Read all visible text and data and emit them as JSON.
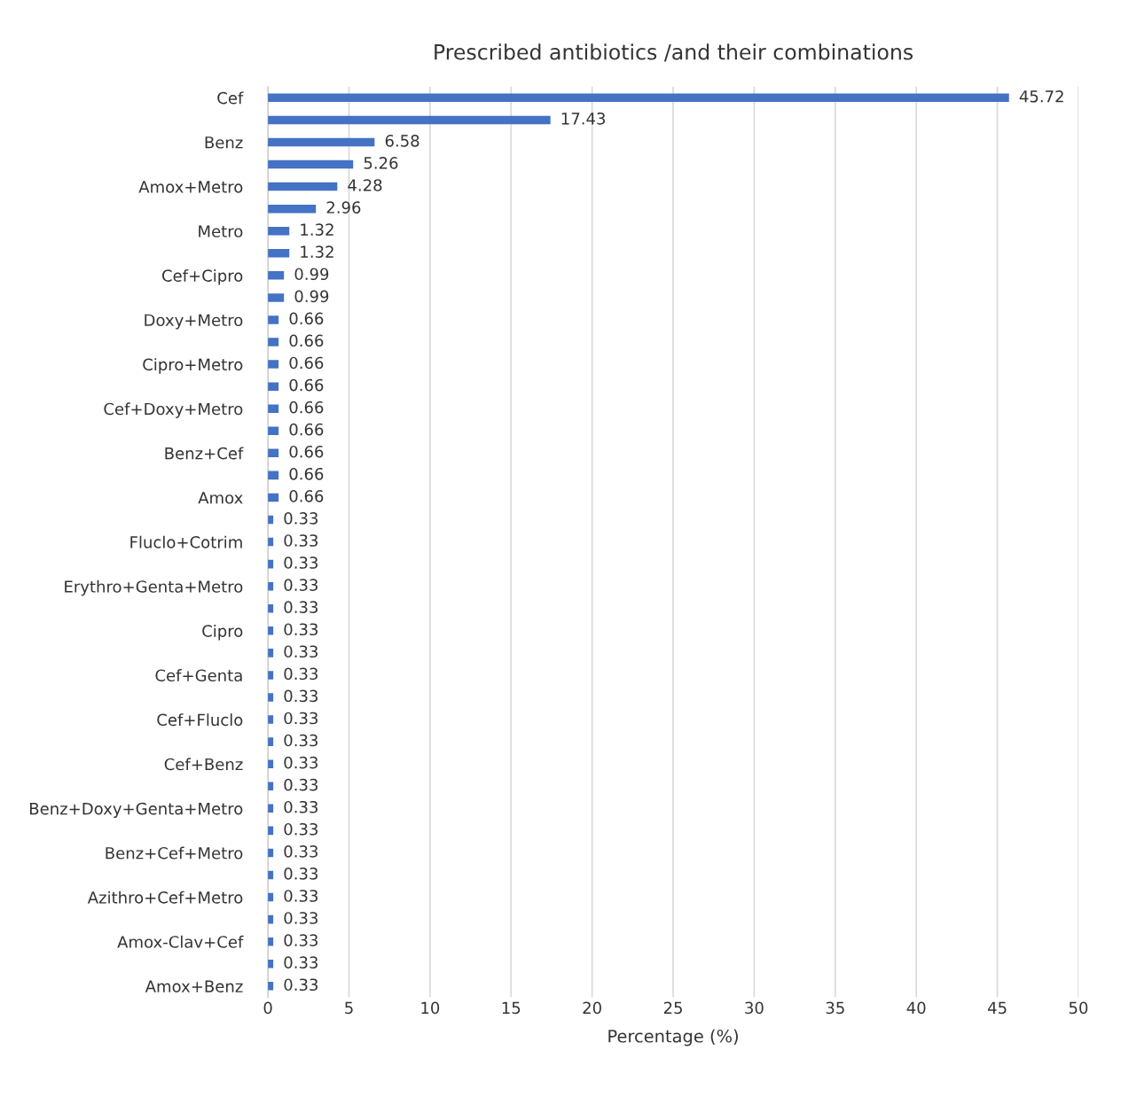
{
  "chart_data": {
    "type": "bar",
    "orientation": "horizontal",
    "title": "Prescribed antibiotics /and their combinations",
    "xlabel": "Percentage (%)",
    "categories": [
      "Cef",
      null,
      "Benz",
      null,
      "Amox+Metro",
      null,
      "Metro",
      null,
      "Cef+Cipro",
      null,
      "Doxy+Metro",
      null,
      "Cipro+Metro",
      null,
      "Cef+Doxy+Metro",
      null,
      "Benz+Cef",
      null,
      "Amox",
      null,
      "Fluclo+Cotrim",
      null,
      "Erythro+Genta+Metro",
      null,
      "Cipro",
      null,
      "Cef+Genta",
      null,
      "Cef+Fluclo",
      null,
      "Cef+Benz",
      null,
      "Benz+Doxy+Genta+Metro",
      null,
      "Benz+Cef+Metro",
      null,
      "Azithro+Cef+Metro",
      null,
      "Amox-Clav+Cef",
      null,
      "Amox+Benz"
    ],
    "values": [
      45.72,
      17.43,
      6.58,
      5.26,
      4.28,
      2.96,
      1.32,
      1.32,
      0.99,
      0.99,
      0.66,
      0.66,
      0.66,
      0.66,
      0.66,
      0.66,
      0.66,
      0.66,
      0.66,
      0.33,
      0.33,
      0.33,
      0.33,
      0.33,
      0.33,
      0.33,
      0.33,
      0.33,
      0.33,
      0.33,
      0.33,
      0.33,
      0.33,
      0.33,
      0.33,
      0.33,
      0.33,
      0.33,
      0.33,
      0.33,
      0.33
    ],
    "color": "#4472c4",
    "data_labels": true,
    "grid": "x",
    "xlim": [
      0,
      50
    ],
    "xticks": [
      0,
      5,
      10,
      15,
      20,
      25,
      30,
      35,
      40,
      45,
      50
    ]
  }
}
